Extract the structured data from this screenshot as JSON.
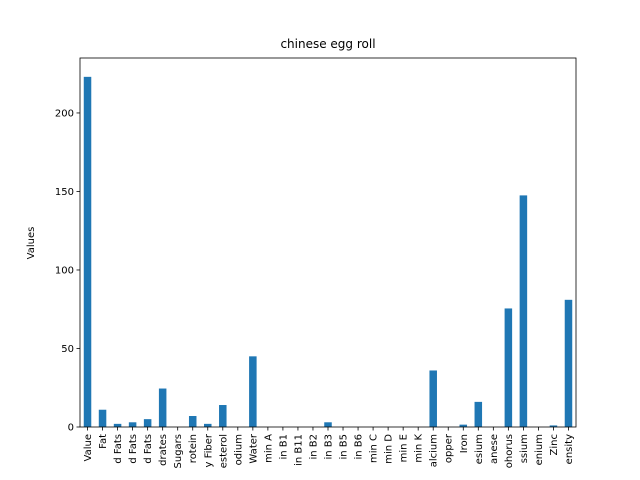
{
  "chart_data": {
    "type": "bar",
    "title": "chinese egg roll",
    "xlabel": "",
    "ylabel": "Values",
    "ylim": [
      0,
      235
    ],
    "yticks": [
      0,
      50,
      100,
      150,
      200
    ],
    "grid": false,
    "legend": "none",
    "bar_color": "#1f77b4",
    "categories": [
      "Value",
      "Fat",
      "d Fats",
      "d Fats",
      "d Fats",
      "drates",
      "Sugars",
      "rotein",
      "y Fiber",
      "esterol",
      "odium",
      "Water",
      "min A",
      "in B1",
      "in B11",
      "in B2",
      "in B3",
      "in B5",
      "in B6",
      "min C",
      "min D",
      "min E",
      "min K",
      "alcium",
      "opper",
      "Iron",
      "esium",
      "anese",
      "ohorus",
      "ssium",
      "enium",
      "Zinc",
      "ensity"
    ],
    "values": [
      223,
      11,
      2,
      3,
      5,
      24.5,
      0,
      7,
      2,
      14,
      0,
      45,
      0,
      0,
      0,
      0,
      3,
      0,
      0,
      0,
      0,
      0,
      0,
      36,
      0,
      1.5,
      16,
      0,
      75.5,
      147.5,
      0,
      1,
      81
    ]
  }
}
